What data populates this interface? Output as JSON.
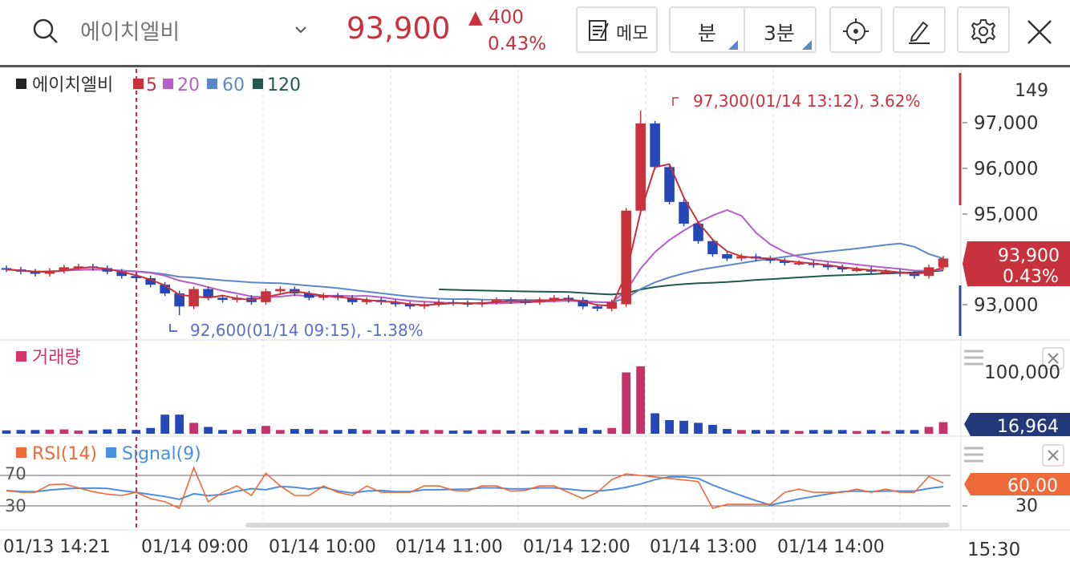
{
  "header": {
    "stock_name": "에이치엘비",
    "price": "93,900",
    "change_value": "400",
    "change_pct": "0.43%",
    "memo_label": "메모",
    "interval_unit": "분",
    "interval_value": "3분"
  },
  "icons": [
    "search-icon",
    "chevron-down-icon",
    "memo-icon",
    "crosshair-icon",
    "pen-icon",
    "gear-icon",
    "close-icon"
  ],
  "colors": {
    "up": "#c8323c",
    "down": "#2547b8",
    "ma5": "#c8323c",
    "ma20": "#b55fc9",
    "ma60": "#5b88c8",
    "ma120": "#1f5a4e",
    "rsi": "#ef6a3a",
    "signal": "#4a8fe0",
    "volume_badge": "#23397a"
  },
  "legend": {
    "name": "에이치엘비",
    "ma5": "5",
    "ma20": "20",
    "ma60": "60",
    "ma120": "120"
  },
  "annotations": {
    "high": "97,300(01/14 13:12), 3.62%",
    "low": "92,600(01/14 09:15), -1.38%"
  },
  "price_axis": {
    "top": "149",
    "ticks": [
      "97,000",
      "96,000",
      "95,000",
      "93,000"
    ],
    "badge_price": "93,900",
    "badge_pct": "0.43%"
  },
  "volume": {
    "label": "거래량",
    "axis": "100,000",
    "badge": "16,964"
  },
  "rsi": {
    "rsi_label": "RSI(14)",
    "signal_label": "Signal(9)",
    "left_upper": "70",
    "left_lower": "30",
    "right_badge": "60.00",
    "right_lower": "30"
  },
  "time_axis": [
    "01/13 14:21",
    "01/14 09:00",
    "01/14 10:00",
    "01/14 11:00",
    "01/14 12:00",
    "01/14 13:00",
    "01/14 14:00"
  ],
  "time_last": "15:30",
  "chart_data": {
    "type": "candlestick",
    "title": "에이치엘비",
    "interval": "3분",
    "x_labels": [
      "01/13 14:21",
      "01/14 09:00",
      "01/14 10:00",
      "01/14 11:00",
      "01/14 12:00",
      "01/14 13:00",
      "01/14 14:00"
    ],
    "ylim": [
      92400,
      97700
    ],
    "y_ticks": [
      93000,
      95000,
      96000,
      97000
    ],
    "last_price": 93900,
    "high": {
      "value": 97300,
      "time": "01/14 13:12",
      "pct": 3.62
    },
    "low": {
      "value": 92600,
      "time": "01/14 09:15",
      "pct": -1.38
    },
    "close_series": [
      93650,
      93600,
      93550,
      93620,
      93700,
      93720,
      93680,
      93600,
      93500,
      93450,
      93300,
      93100,
      92800,
      93200,
      93000,
      92950,
      93000,
      92900,
      93150,
      93200,
      93100,
      93000,
      93050,
      93000,
      92900,
      92950,
      92900,
      92850,
      92800,
      92850,
      92900,
      92880,
      92850,
      92900,
      92950,
      92920,
      92900,
      92950,
      93000,
      92950,
      92800,
      92750,
      92900,
      95000,
      97000,
      96000,
      95200,
      94700,
      94300,
      94000,
      93900,
      93950,
      93900,
      93850,
      93800,
      93800,
      93750,
      93700,
      93650,
      93650,
      93600,
      93600,
      93550,
      93500,
      93700,
      93900
    ],
    "ma_series": [
      "5",
      "20",
      "60",
      "120"
    ],
    "volume": {
      "label": "거래량",
      "axis_max": 100000,
      "last": 16964,
      "spike_values": [
        90000,
        99000
      ]
    },
    "rsi": {
      "period": 14,
      "signal": 9,
      "levels": [
        70,
        30
      ],
      "last": 60.0
    }
  }
}
